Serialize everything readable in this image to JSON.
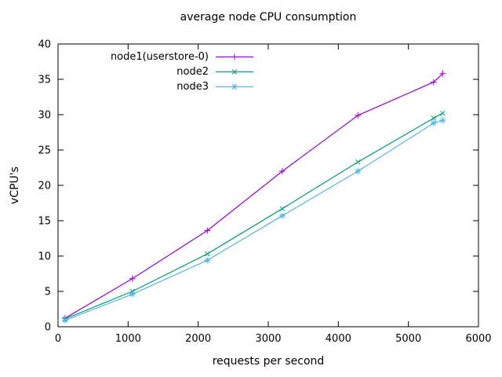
{
  "chart_data": {
    "type": "line",
    "title": "average node CPU consumption",
    "xlabel": "requests per second",
    "ylabel": "vCPU's",
    "xlim": [
      0,
      6000
    ],
    "ylim": [
      0,
      40
    ],
    "x_ticks": [
      0,
      1000,
      2000,
      3000,
      4000,
      5000,
      6000
    ],
    "y_ticks": [
      0,
      5,
      10,
      15,
      20,
      25,
      30,
      35,
      40
    ],
    "grid": false,
    "legend_position": "inside-top-left",
    "axis_color": "#000000",
    "text_color": "#000000",
    "x": [
      100,
      1060,
      2130,
      3200,
      4280,
      5360,
      5490
    ],
    "series": [
      {
        "name": "node1(userstore-0)",
        "color": "#9400d3",
        "marker": "plus",
        "values": [
          1.2,
          6.8,
          13.6,
          22.0,
          29.9,
          34.6,
          35.8
        ]
      },
      {
        "name": "node2",
        "color": "#009e73",
        "marker": "cross",
        "values": [
          1.1,
          5.0,
          10.3,
          16.7,
          23.3,
          29.5,
          30.2
        ]
      },
      {
        "name": "node3",
        "color": "#56b4e9",
        "marker": "asterisk",
        "values": [
          0.9,
          4.6,
          9.4,
          15.7,
          22.0,
          28.8,
          29.2
        ]
      }
    ]
  }
}
